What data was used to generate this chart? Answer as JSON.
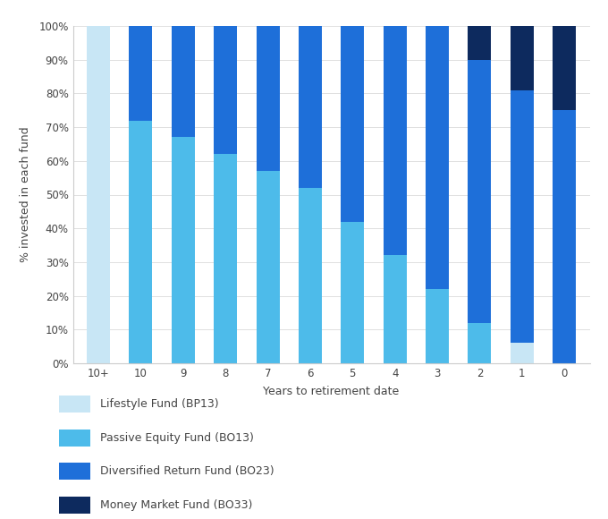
{
  "categories": [
    "10+",
    "10",
    "9",
    "8",
    "7",
    "6",
    "5",
    "4",
    "3",
    "2",
    "1",
    "0"
  ],
  "series": {
    "Lifestyle Fund (BP13)": [
      100,
      0,
      0,
      0,
      0,
      0,
      0,
      0,
      0,
      0,
      6,
      0
    ],
    "Passive Equity Fund (BO13)": [
      0,
      72,
      67,
      62,
      57,
      52,
      42,
      32,
      22,
      12,
      0,
      0
    ],
    "Diversified Return Fund (BO23)": [
      0,
      28,
      33,
      38,
      43,
      48,
      58,
      68,
      78,
      78,
      75,
      75
    ],
    "Money Market Fund (BO33)": [
      0,
      0,
      0,
      0,
      0,
      0,
      0,
      0,
      0,
      10,
      19,
      25
    ]
  },
  "colors": {
    "Lifestyle Fund (BP13)": "#C8E6F5",
    "Passive Equity Fund (BO13)": "#4DBBEA",
    "Diversified Return Fund (BO23)": "#1E6FD9",
    "Money Market Fund (BO33)": "#0D2A5E"
  },
  "ylabel": "% invested in each fund",
  "xlabel": "Years to retirement date",
  "ylim": [
    0,
    100
  ],
  "yticks": [
    0,
    10,
    20,
    30,
    40,
    50,
    60,
    70,
    80,
    90,
    100
  ],
  "ytick_labels": [
    "0%",
    "10%",
    "20%",
    "30%",
    "40%",
    "50%",
    "60%",
    "70%",
    "80%",
    "90%",
    "100%"
  ],
  "legend_order": [
    "Lifestyle Fund (BP13)",
    "Passive Equity Fund (BO13)",
    "Diversified Return Fund (BO23)",
    "Money Market Fund (BO33)"
  ],
  "bar_width": 0.55,
  "background_color": "#FFFFFF",
  "text_color": "#444444",
  "axis_color": "#CCCCCC",
  "grid_color": "#E0E0E0"
}
